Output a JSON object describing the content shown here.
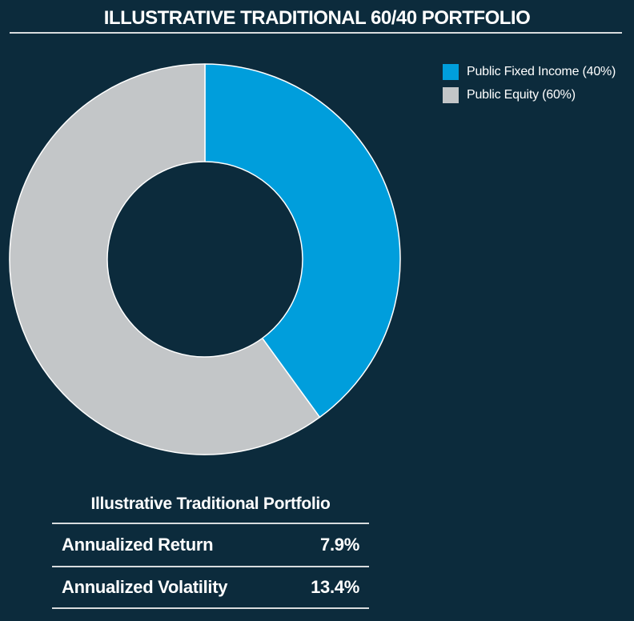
{
  "title": "ILLUSTRATIVE TRADITIONAL 60/40 PORTFOLIO",
  "colors": {
    "background": "#0C2B3C",
    "accent_blue": "#009EDC",
    "neutral_gray": "#C3C6C8",
    "separator_line": "#D8DCDE",
    "text": "#FFFFFF",
    "segment_stroke": "#FFFFFF"
  },
  "chart_data": {
    "type": "pie",
    "style": "donut",
    "title": "ILLUSTRATIVE TRADITIONAL 60/40 PORTFOLIO",
    "start_angle_deg": 0,
    "direction": "clockwise",
    "inner_radius_ratio": 0.5,
    "legend_position": "top-right",
    "segments": [
      {
        "label": "Public Fixed Income (40%)",
        "value": 40,
        "color": "#009EDC"
      },
      {
        "label": "Public Equity (60%)",
        "value": 60,
        "color": "#C3C6C8"
      }
    ]
  },
  "table": {
    "header": "Illustrative Traditional Portfolio",
    "rows": [
      {
        "label": "Annualized Return",
        "value": "7.9%"
      },
      {
        "label": "Annualized Volatility",
        "value": "13.4%"
      }
    ]
  }
}
